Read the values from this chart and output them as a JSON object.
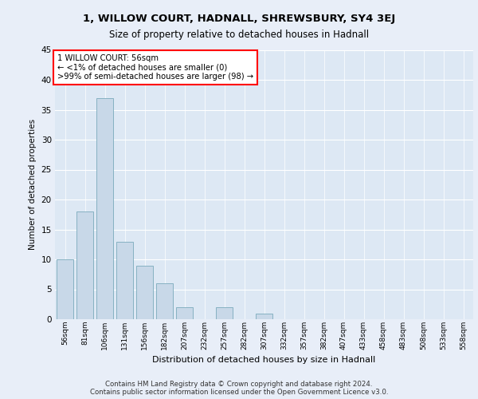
{
  "title1": "1, WILLOW COURT, HADNALL, SHREWSBURY, SY4 3EJ",
  "title2": "Size of property relative to detached houses in Hadnall",
  "xlabel": "Distribution of detached houses by size in Hadnall",
  "ylabel": "Number of detached properties",
  "categories": [
    "56sqm",
    "81sqm",
    "106sqm",
    "131sqm",
    "156sqm",
    "182sqm",
    "207sqm",
    "232sqm",
    "257sqm",
    "282sqm",
    "307sqm",
    "332sqm",
    "357sqm",
    "382sqm",
    "407sqm",
    "433sqm",
    "458sqm",
    "483sqm",
    "508sqm",
    "533sqm",
    "558sqm"
  ],
  "values": [
    10,
    18,
    37,
    13,
    9,
    6,
    2,
    0,
    2,
    0,
    1,
    0,
    0,
    0,
    0,
    0,
    0,
    0,
    0,
    0,
    0
  ],
  "bar_color": "#c8d8e8",
  "bar_edge_color": "#7aaabb",
  "highlight_color": "#cc0000",
  "annotation_title": "1 WILLOW COURT: 56sqm",
  "annotation_line1": "← <1% of detached houses are smaller (0)",
  "annotation_line2": ">99% of semi-detached houses are larger (98) →",
  "ylim": [
    0,
    45
  ],
  "yticks": [
    0,
    5,
    10,
    15,
    20,
    25,
    30,
    35,
    40,
    45
  ],
  "bg_color": "#dde8f4",
  "fig_color": "#e8eef8",
  "grid_color": "#ffffff",
  "footer1": "Contains HM Land Registry data © Crown copyright and database right 2024.",
  "footer2": "Contains public sector information licensed under the Open Government Licence v3.0."
}
